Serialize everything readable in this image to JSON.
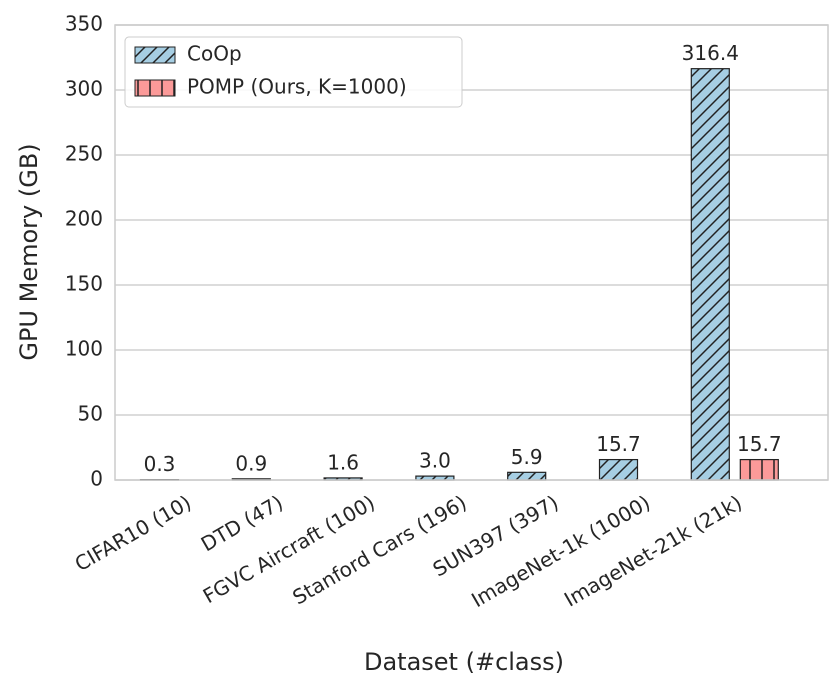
{
  "chart_data": {
    "type": "bar",
    "xlabel": "Dataset (#class)",
    "ylabel": "GPU Memory (GB)",
    "categories": [
      "CIFAR10 (10)",
      "DTD (47)",
      "FGVC Aircraft (100)",
      "Stanford Cars (196)",
      "SUN397 (397)",
      "ImageNet-1k (1000)",
      "ImageNet-21k (21k)"
    ],
    "series": [
      {
        "name": "CoOp",
        "color": "#a6cee3",
        "values": [
          0.3,
          0.9,
          1.6,
          3.0,
          5.9,
          15.7,
          316.4
        ],
        "value_labels": [
          "0.3",
          "0.9",
          "1.6",
          "3.0",
          "5.9",
          "15.7",
          "316.4"
        ]
      },
      {
        "name": "POMP (Ours, K=1000)",
        "color": "#fb9a99",
        "values": [
          null,
          null,
          null,
          null,
          null,
          null,
          15.7
        ]
      }
    ],
    "ylim": [
      0,
      350
    ],
    "yticks": [
      0,
      50,
      100,
      150,
      200,
      250,
      300,
      350
    ],
    "grid": true,
    "legend": "upper left"
  }
}
